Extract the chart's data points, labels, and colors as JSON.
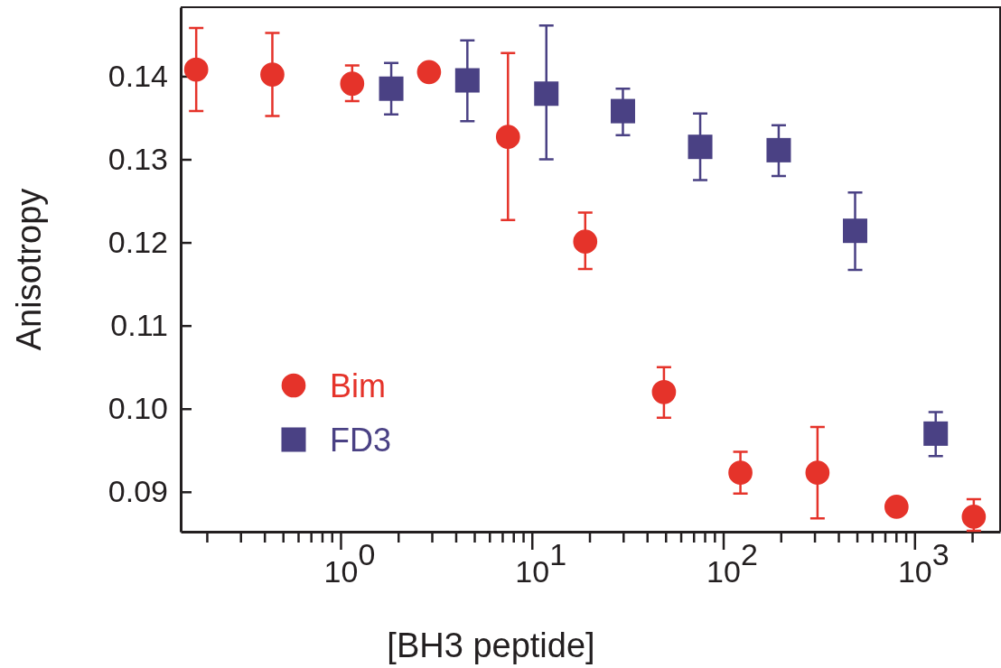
{
  "chart_data": {
    "type": "scatter",
    "xlabel": "[BH3 peptide]",
    "ylabel": "Anisotropy",
    "log": "x",
    "xlim": [
      0.146,
      2800
    ],
    "ylim": [
      0.0852,
      0.1483
    ],
    "xticks": [
      {
        "value": 0.2,
        "label": null
      },
      {
        "value": 0.3,
        "label": null
      },
      {
        "value": 0.4,
        "label": null
      },
      {
        "value": 0.5,
        "label": null
      },
      {
        "value": 0.6,
        "label": null
      },
      {
        "value": 0.7,
        "label": null
      },
      {
        "value": 0.8,
        "label": null
      },
      {
        "value": 0.9,
        "label": null
      },
      {
        "value": 1,
        "label": "10$^{0}$"
      },
      {
        "value": 2,
        "label": null
      },
      {
        "value": 3,
        "label": null
      },
      {
        "value": 4,
        "label": null
      },
      {
        "value": 5,
        "label": null
      },
      {
        "value": 6,
        "label": null
      },
      {
        "value": 7,
        "label": null
      },
      {
        "value": 8,
        "label": null
      },
      {
        "value": 9,
        "label": null
      },
      {
        "value": 10,
        "label": "10$^{1}$"
      },
      {
        "value": 20,
        "label": null
      },
      {
        "value": 30,
        "label": null
      },
      {
        "value": 40,
        "label": null
      },
      {
        "value": 50,
        "label": null
      },
      {
        "value": 60,
        "label": null
      },
      {
        "value": 70,
        "label": null
      },
      {
        "value": 80,
        "label": null
      },
      {
        "value": 90,
        "label": null
      },
      {
        "value": 100,
        "label": "10$^{2}$"
      },
      {
        "value": 200,
        "label": null
      },
      {
        "value": 300,
        "label": null
      },
      {
        "value": 400,
        "label": null
      },
      {
        "value": 500,
        "label": null
      },
      {
        "value": 600,
        "label": null
      },
      {
        "value": 700,
        "label": null
      },
      {
        "value": 800,
        "label": null
      },
      {
        "value": 900,
        "label": null
      },
      {
        "value": 1000,
        "label": "10$^{3}$"
      },
      {
        "value": 2000,
        "label": null
      }
    ],
    "yticks": [
      {
        "value": 0.09,
        "label": "0.09"
      },
      {
        "value": 0.1,
        "label": "0.10"
      },
      {
        "value": 0.11,
        "label": "0.11"
      },
      {
        "value": 0.12,
        "label": "0.12"
      },
      {
        "value": 0.13,
        "label": "0.13"
      },
      {
        "value": 0.14,
        "label": "0.14"
      }
    ],
    "grid": false,
    "legend": "left",
    "series": [
      {
        "name": "Bim",
        "color": "#e5332a",
        "marker": "circle",
        "x": [
          0.176,
          0.44,
          1.15,
          2.9,
          7.5,
          19,
          49,
          123,
          311,
          805,
          2040
        ],
        "values": [
          0.1408,
          0.1402,
          0.1391,
          0.1405,
          0.1327,
          0.1201,
          0.102,
          0.0923,
          0.0923,
          0.0882,
          0.087
        ],
        "errors": [
          [
            0.1358,
            0.1458
          ],
          [
            0.1352,
            0.1452
          ],
          [
            0.137,
            0.1413
          ],
          null,
          [
            0.1227,
            0.1428
          ],
          [
            0.1168,
            0.1236
          ],
          [
            0.0989,
            0.105
          ],
          [
            0.0898,
            0.0948
          ],
          [
            0.0868,
            0.0978
          ],
          null,
          [
            0.0853,
            0.0891
          ]
        ]
      },
      {
        "name": "FD3",
        "color": "#4a4184",
        "marker": "square",
        "x": [
          1.84,
          4.6,
          11.9,
          29.9,
          75.8,
          195,
          489,
          1290
        ],
        "values": [
          0.1385,
          0.1395,
          0.1379,
          0.1358,
          0.1315,
          0.1311,
          0.1214,
          0.097
        ],
        "errors": [
          [
            0.1354,
            0.1416
          ],
          [
            0.1346,
            0.1443
          ],
          [
            0.13,
            0.1461
          ],
          [
            0.1329,
            0.1385
          ],
          [
            0.1275,
            0.1355
          ],
          [
            0.128,
            0.1341
          ],
          [
            0.1167,
            0.126
          ],
          [
            0.0943,
            0.0996
          ]
        ]
      }
    ]
  }
}
